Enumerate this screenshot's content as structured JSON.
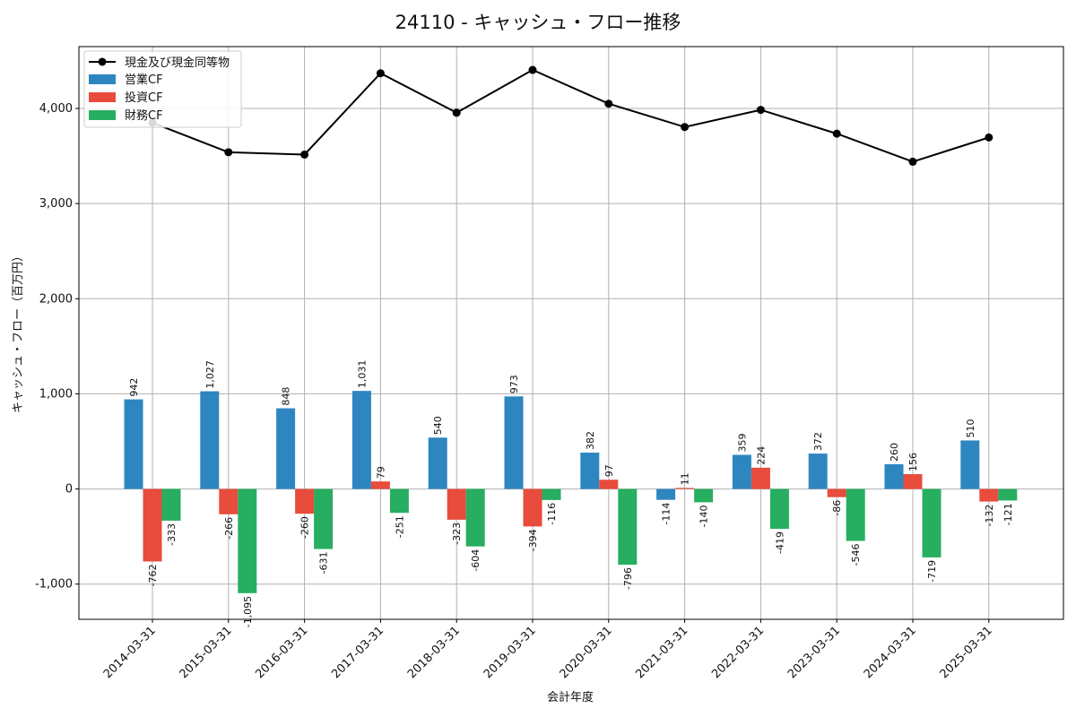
{
  "chart_data": {
    "type": "bar",
    "title": "24110 - キャッシュ・フロー推移",
    "xlabel": "会計年度",
    "ylabel": "キャッシュ・フロー（百万円）",
    "ylim": [
      -1370,
      4650
    ],
    "yticks": [
      -1000,
      0,
      1000,
      2000,
      3000,
      4000
    ],
    "ytick_labels": [
      "-1,000",
      "0",
      "1,000",
      "2,000",
      "3,000",
      "4,000"
    ],
    "grid": true,
    "legend_position": "top-left",
    "categories": [
      "2014-03-31",
      "2015-03-31",
      "2016-03-31",
      "2017-03-31",
      "2018-03-31",
      "2019-03-31",
      "2020-03-31",
      "2021-03-31",
      "2022-03-31",
      "2023-03-31",
      "2024-03-31",
      "2025-03-31"
    ],
    "line_series": {
      "name": "現金及び現金同等物",
      "color": "#000000",
      "values": [
        3850,
        3540,
        3515,
        4370,
        3955,
        4405,
        4050,
        3805,
        3985,
        3735,
        3440,
        3695
      ]
    },
    "series": [
      {
        "name": "営業CF",
        "color": "#2e86c1",
        "values": [
          942,
          1027,
          848,
          1031,
          540,
          973,
          382,
          -114,
          359,
          372,
          260,
          510
        ],
        "labels": [
          "942",
          "1,027",
          "848",
          "1,031",
          "540",
          "973",
          "382",
          "-114",
          "359",
          "372",
          "260",
          "510"
        ]
      },
      {
        "name": "投資CF",
        "color": "#e74c3c",
        "values": [
          -762,
          -266,
          -260,
          79,
          -323,
          -394,
          97,
          11,
          224,
          -86,
          156,
          -132
        ],
        "labels": [
          "-762",
          "-266",
          "-260",
          "79",
          "-323",
          "-394",
          "97",
          "11",
          "224",
          "-86",
          "156",
          "-132"
        ]
      },
      {
        "name": "財務CF",
        "color": "#27ae60",
        "values": [
          -333,
          -1095,
          -631,
          -251,
          -604,
          -116,
          -796,
          -140,
          -419,
          -546,
          -719,
          -121
        ],
        "labels": [
          "-333",
          "-1,095",
          "-631",
          "-251",
          "-604",
          "-116",
          "-796",
          "-140",
          "-419",
          "-546",
          "-719",
          "-121"
        ]
      }
    ]
  }
}
